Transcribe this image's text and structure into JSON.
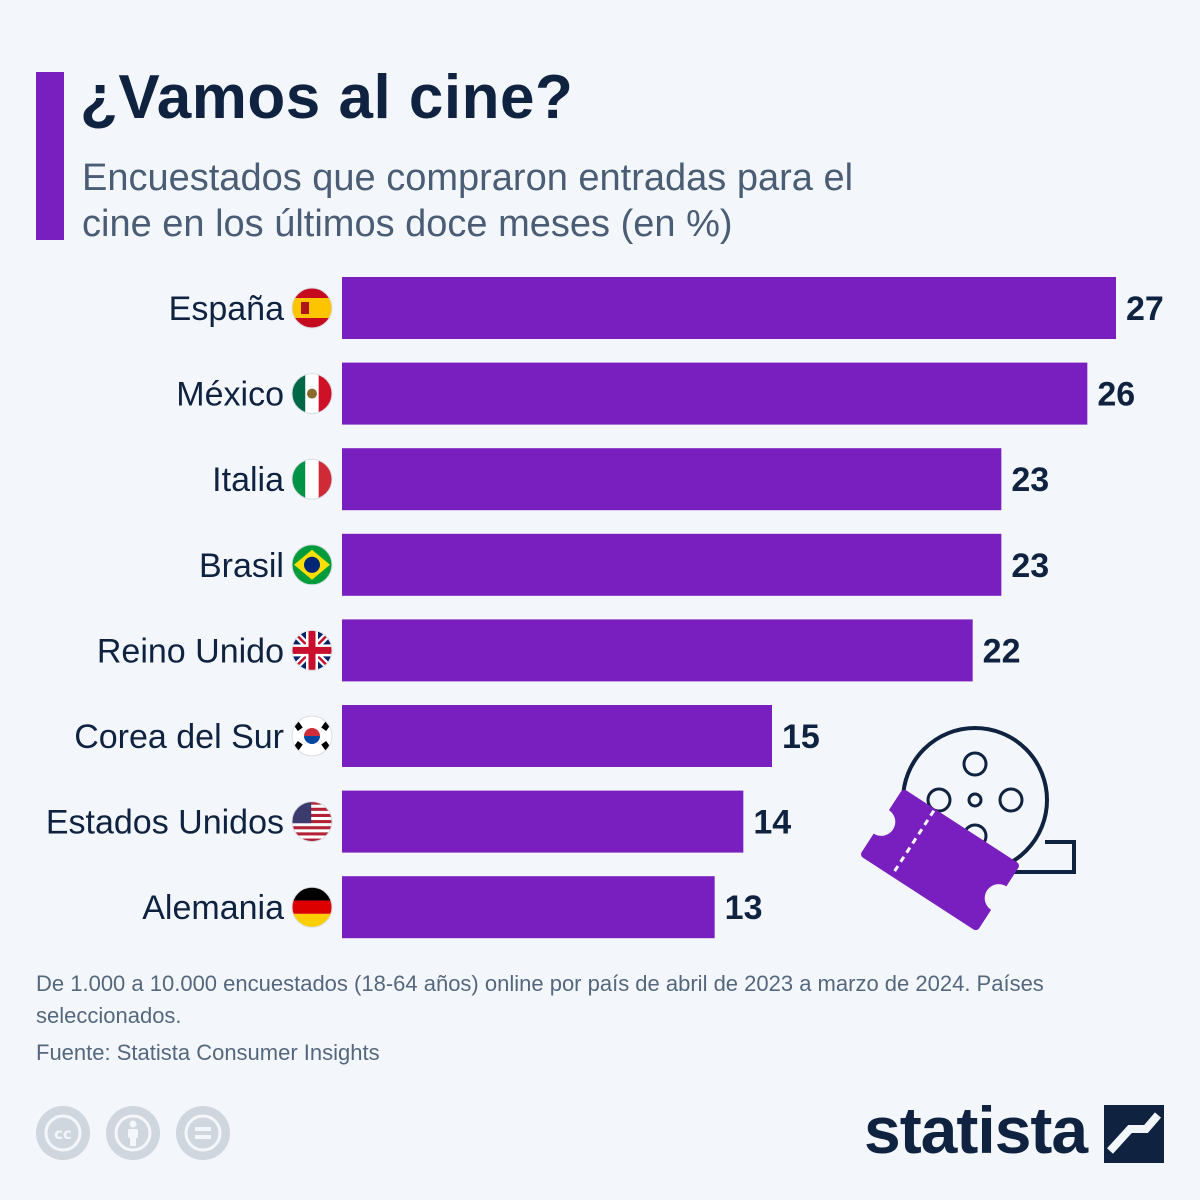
{
  "header": {
    "title": "¿Vamos al cine?",
    "subtitle": "Encuestados que compraron entradas para el cine en los últimos doce meses (en %)"
  },
  "colors": {
    "bar": "#7a1fbf",
    "text": "#0f2240",
    "muted": "#55677e",
    "background": "#f3f7fb"
  },
  "chart_data": {
    "type": "bar",
    "orientation": "horizontal",
    "categories": [
      "España",
      "México",
      "Italia",
      "Brasil",
      "Reino Unido",
      "Corea del Sur",
      "Estados Unidos",
      "Alemania"
    ],
    "values": [
      27,
      26,
      23,
      23,
      22,
      15,
      14,
      13
    ],
    "flags": [
      "flag-spain-icon",
      "flag-mexico-icon",
      "flag-italy-icon",
      "flag-brazil-icon",
      "flag-uk-icon",
      "flag-south-korea-icon",
      "flag-usa-icon",
      "flag-germany-icon"
    ],
    "data_labels": true,
    "grid": false,
    "legend": "none"
  },
  "footer": {
    "notes": "De 1.000 a 10.000 encuestados (18-64 años) online por país de abril de 2023 a marzo de 2024. Países seleccionados.",
    "source": "Fuente: Statista Consumer Insights",
    "brand": "statista",
    "license_icons": [
      "creative-commons-icon",
      "attribution-icon",
      "no-derivatives-icon"
    ]
  }
}
